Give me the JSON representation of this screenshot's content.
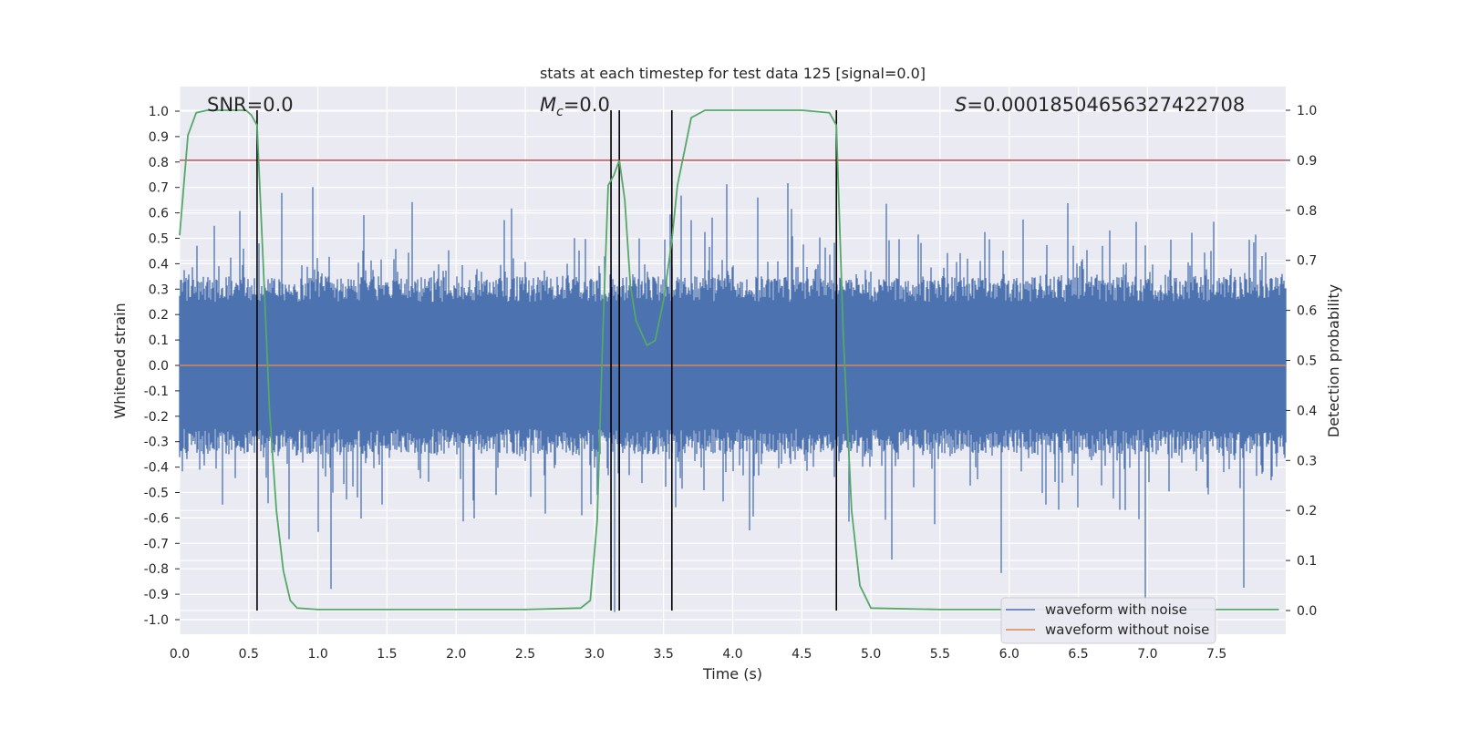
{
  "chart_data": {
    "type": "line",
    "title": "stats at each timestep for test data 125 [signal=0.0]",
    "xlabel": "Time (s)",
    "ylabel_left": "Whitened strain",
    "ylabel_right": "Detection probability",
    "xlim": [
      0.0,
      8.0
    ],
    "ylim_left": [
      -1.0,
      1.0
    ],
    "ylim_right": [
      0.0,
      1.0
    ],
    "x_ticks": [
      "0.0",
      "0.5",
      "1.0",
      "1.5",
      "2.0",
      "2.5",
      "3.0",
      "3.5",
      "4.0",
      "4.5",
      "5.0",
      "5.5",
      "6.0",
      "6.5",
      "7.0",
      "7.5"
    ],
    "y_ticks_left": [
      "1.0",
      "0.9",
      "0.8",
      "0.7",
      "0.6",
      "0.5",
      "0.4",
      "0.3",
      "0.2",
      "0.1",
      "0.0",
      "-0.1",
      "-0.2",
      "-0.3",
      "-0.4",
      "-0.5",
      "-0.6",
      "-0.7",
      "-0.8",
      "-0.9",
      "-1.0"
    ],
    "y_ticks_right": [
      "1.0",
      "0.9",
      "0.8",
      "0.7",
      "0.6",
      "0.5",
      "0.4",
      "0.3",
      "0.2",
      "0.1",
      "0.0"
    ],
    "annotations": {
      "snr": "SNR=0.0",
      "mc_symbol": "M",
      "mc_sub": "c",
      "mc_value": "=0.0",
      "s_symbol": "S",
      "s_value": "=0.00018504656327422708"
    },
    "threshold_right": 0.9,
    "vertical_lines_x": [
      0.56,
      3.12,
      3.18,
      3.56,
      4.75
    ],
    "detection_probability": {
      "x": [
        0.0,
        0.06,
        0.12,
        0.2,
        0.3,
        0.4,
        0.48,
        0.52,
        0.56,
        0.6,
        0.65,
        0.7,
        0.75,
        0.8,
        0.85,
        1.0,
        1.5,
        2.0,
        2.5,
        2.9,
        2.97,
        3.02,
        3.06,
        3.1,
        3.14,
        3.18,
        3.22,
        3.26,
        3.3,
        3.38,
        3.44,
        3.5,
        3.56,
        3.6,
        3.66,
        3.7,
        3.8,
        4.0,
        4.5,
        4.7,
        4.75,
        4.8,
        4.86,
        4.92,
        5.0,
        5.5,
        6.0,
        6.5,
        7.0,
        7.5,
        7.95
      ],
      "y": [
        0.75,
        0.95,
        0.995,
        1.0,
        1.0,
        1.0,
        1.0,
        0.99,
        0.97,
        0.72,
        0.4,
        0.2,
        0.08,
        0.02,
        0.005,
        0.002,
        0.002,
        0.002,
        0.002,
        0.005,
        0.02,
        0.18,
        0.55,
        0.85,
        0.87,
        0.9,
        0.82,
        0.65,
        0.58,
        0.53,
        0.54,
        0.62,
        0.74,
        0.85,
        0.93,
        0.985,
        1.0,
        1.0,
        1.0,
        0.995,
        0.97,
        0.55,
        0.2,
        0.05,
        0.005,
        0.002,
        0.002,
        0.002,
        0.002,
        0.002,
        0.002
      ]
    },
    "series": [
      {
        "name": "waveform with noise",
        "color": "#4c72b0"
      },
      {
        "name": "waveform without noise",
        "color": "#dd8452"
      }
    ],
    "detection_color": "#55a868",
    "threshold_color": "#c44e52",
    "legend_placement": "lower-right",
    "grid": true
  }
}
